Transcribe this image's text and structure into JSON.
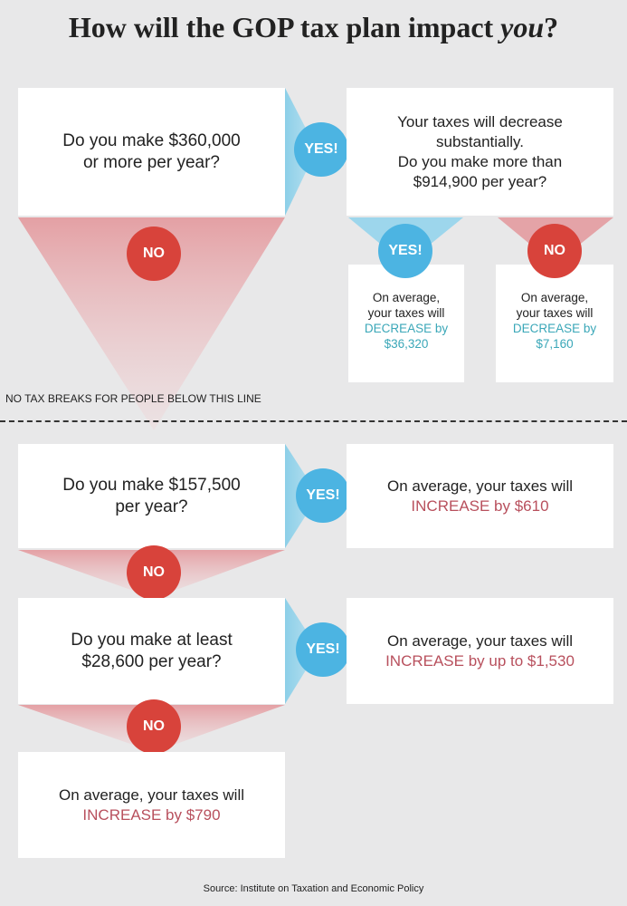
{
  "title": {
    "main": "How will the GOP tax plan impact ",
    "emph": "you",
    "end": "?"
  },
  "colors": {
    "yes": "#4cb4e2",
    "no": "#d8433b",
    "decrease_text": "#3aa7b8",
    "increase_text": "#b8505d",
    "background": "#e8e8e9"
  },
  "labels": {
    "yes": "YES!",
    "no": "NO"
  },
  "q1": {
    "line1": "Do you make $360,000",
    "line2": "or more per year?"
  },
  "q2": {
    "line1": "Your taxes will decrease",
    "line2": "substantially.",
    "line3": "Do you make more than",
    "line4": "$914,900 per year?"
  },
  "r_yes_top": {
    "line1": "On average,",
    "line2": "your taxes will",
    "line3": "DECREASE by",
    "line4": "$36,320"
  },
  "r_no_top": {
    "line1": "On average,",
    "line2": "your taxes will",
    "line3": "DECREASE by",
    "line4": "$7,160"
  },
  "divider_note": "NO TAX BREAKS FOR PEOPLE BELOW THIS LINE",
  "q3": {
    "line1": "Do you make $157,500",
    "line2": "per year?"
  },
  "r3": {
    "line1": "On average, your taxes will",
    "line2": "INCREASE by $610"
  },
  "q4": {
    "line1": "Do you make at least",
    "line2": "$28,600 per year?"
  },
  "r4": {
    "line1": "On average, your taxes will",
    "line2": "INCREASE by up to $1,530"
  },
  "r5": {
    "line1": "On average, your taxes will",
    "line2": "INCREASE by $790"
  },
  "source": "Source: Institute on Taxation and Economic Policy"
}
